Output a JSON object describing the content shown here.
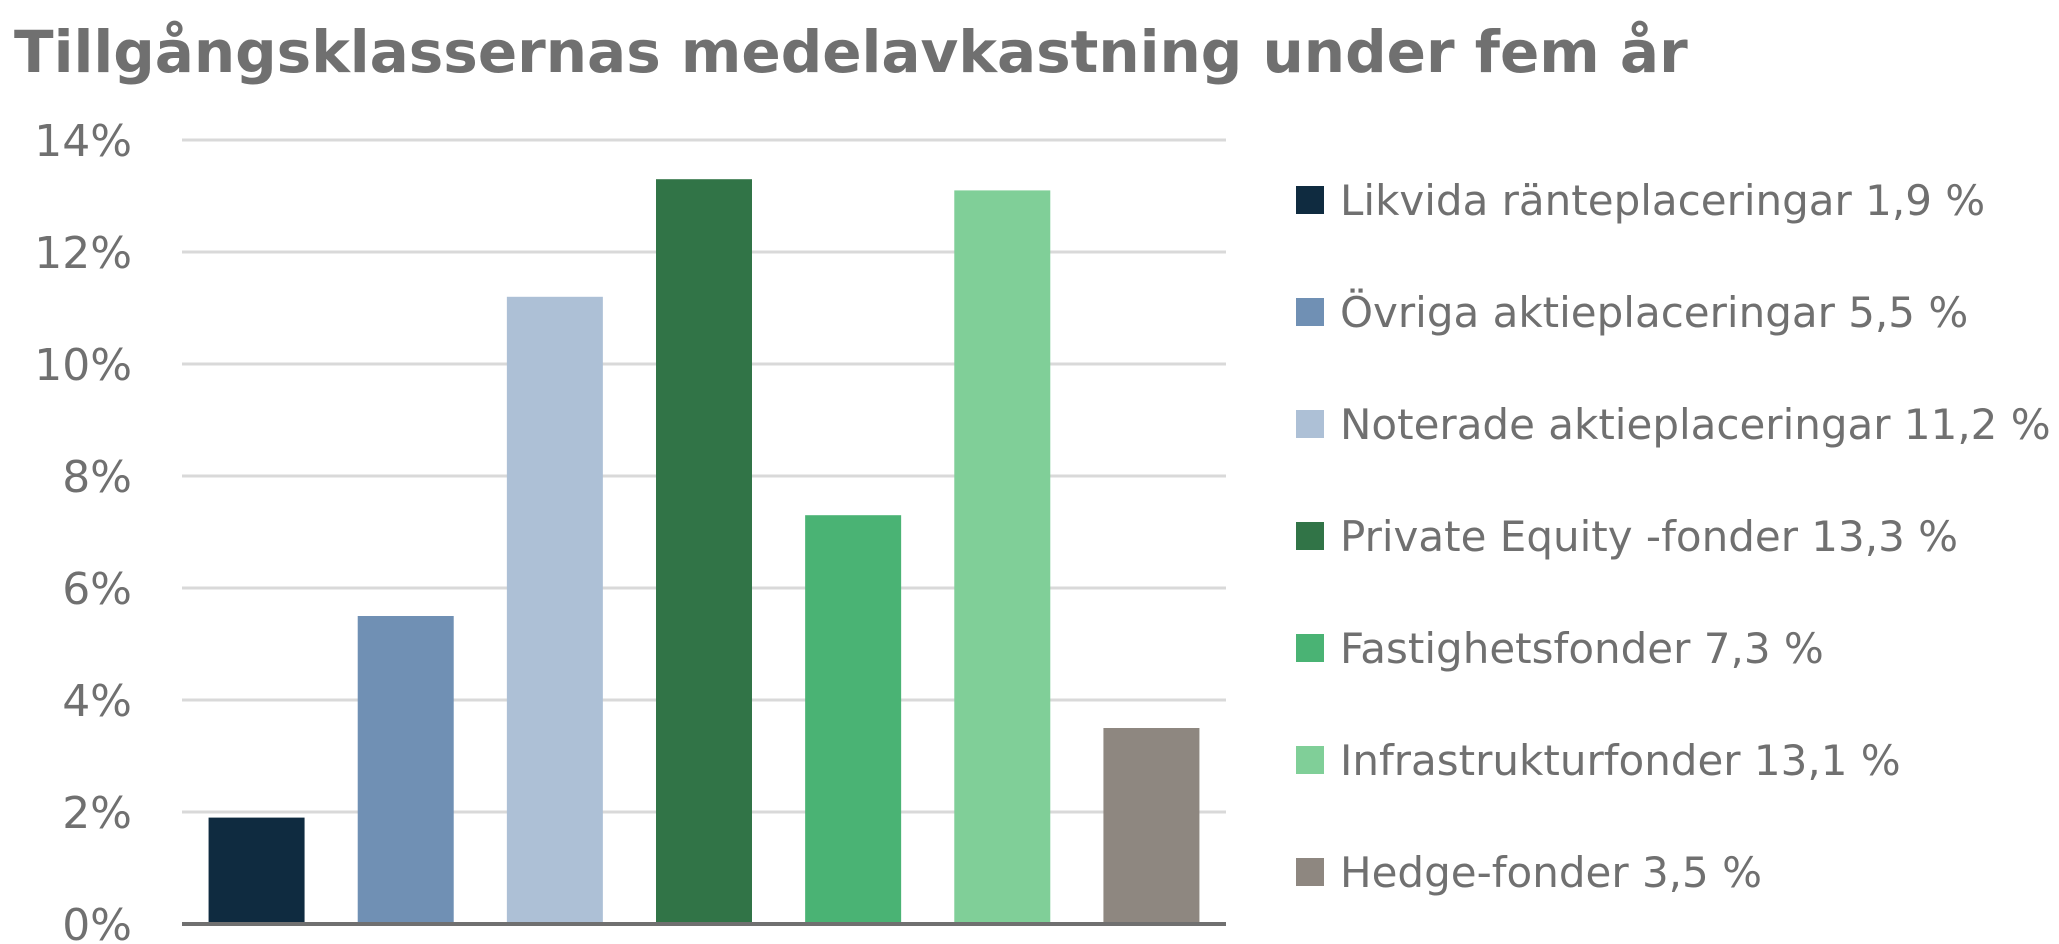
{
  "chart_data": {
    "type": "bar",
    "title": "Tillgångsklassernas medelavkastning under fem år",
    "xlabel": "",
    "ylabel": "",
    "ylim": [
      0,
      14
    ],
    "y_ticks": [
      {
        "value": 0,
        "label": "0%"
      },
      {
        "value": 2,
        "label": "2%"
      },
      {
        "value": 4,
        "label": "4%"
      },
      {
        "value": 6,
        "label": "6%"
      },
      {
        "value": 8,
        "label": "8%"
      },
      {
        "value": 10,
        "label": "10%"
      },
      {
        "value": 12,
        "label": "12%"
      },
      {
        "value": 14,
        "label": "14%"
      }
    ],
    "grid": true,
    "legend_position": "right",
    "categories": [
      "Likvida ränteplaceringar 1,9 %",
      "Övriga aktieplaceringar 5,5 %",
      "Noterade aktieplaceringar 11,2 %",
      "Private Equity -fonder 13,3 %",
      "Fastighetsfonder 7,3 %",
      "Infrastrukturfonder 13,1 %",
      "Hedge-fonder 3,5 %"
    ],
    "values": [
      1.9,
      5.5,
      11.2,
      13.3,
      7.3,
      13.1,
      3.5
    ],
    "colors": [
      "#0f2b40",
      "#7090b4",
      "#adc0d6",
      "#317447",
      "#4ab374",
      "#80cf98",
      "#8e8780"
    ]
  }
}
